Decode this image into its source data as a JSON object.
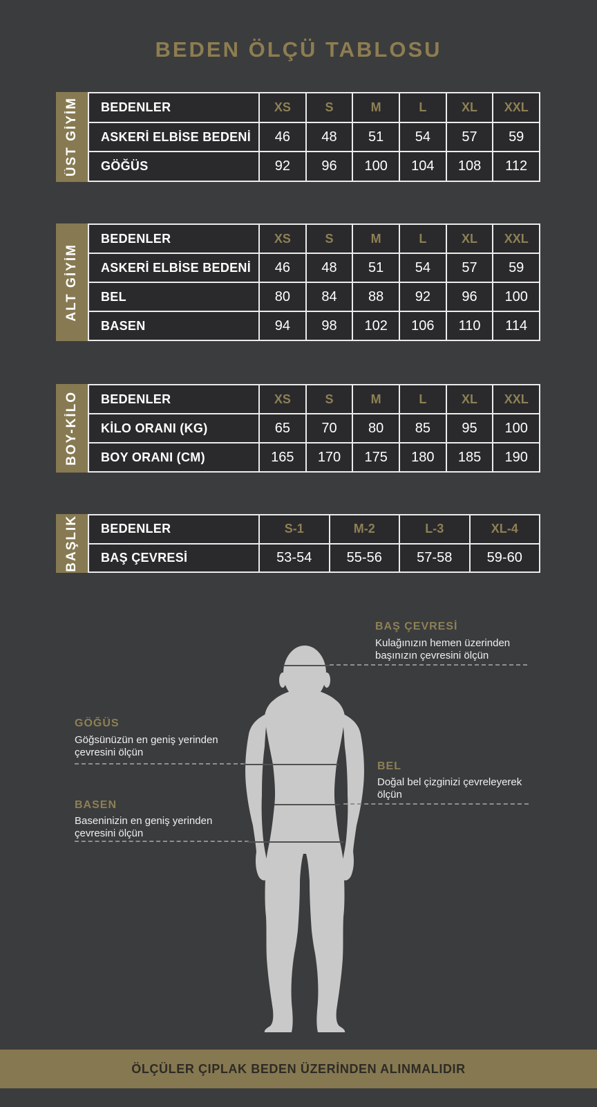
{
  "title": "BEDEN ÖLÇÜ TABLOSU",
  "tables": [
    {
      "group": "ÜST GİYİM",
      "rows": [
        {
          "label": "BEDENLER",
          "values": [
            "XS",
            "S",
            "M",
            "L",
            "XL",
            "XXL"
          ],
          "header": true
        },
        {
          "label": "ASKERİ ELBİSE BEDENİ",
          "values": [
            "46",
            "48",
            "51",
            "54",
            "57",
            "59"
          ]
        },
        {
          "label": "GÖĞÜS",
          "values": [
            "92",
            "96",
            "100",
            "104",
            "108",
            "112"
          ]
        }
      ]
    },
    {
      "group": "ALT GİYİM",
      "rows": [
        {
          "label": "BEDENLER",
          "values": [
            "XS",
            "S",
            "M",
            "L",
            "XL",
            "XXL"
          ],
          "header": true
        },
        {
          "label": "ASKERİ ELBİSE BEDENİ",
          "values": [
            "46",
            "48",
            "51",
            "54",
            "57",
            "59"
          ]
        },
        {
          "label": "BEL",
          "values": [
            "80",
            "84",
            "88",
            "92",
            "96",
            "100"
          ]
        },
        {
          "label": "BASEN",
          "values": [
            "94",
            "98",
            "102",
            "106",
            "110",
            "114"
          ]
        }
      ]
    },
    {
      "group": "BOY-KİLO",
      "rows": [
        {
          "label": "BEDENLER",
          "values": [
            "XS",
            "S",
            "M",
            "L",
            "XL",
            "XXL"
          ],
          "header": true
        },
        {
          "label": "KİLO ORANI (KG)",
          "values": [
            "65",
            "70",
            "80",
            "85",
            "95",
            "100"
          ]
        },
        {
          "label": "BOY ORANI (CM)",
          "values": [
            "165",
            "170",
            "175",
            "180",
            "185",
            "190"
          ]
        }
      ]
    },
    {
      "group": "BAŞLIK",
      "rows": [
        {
          "label": "BEDENLER",
          "values": [
            "S-1",
            "M-2",
            "L-3",
            "XL-4"
          ],
          "header": true
        },
        {
          "label": "BAŞ ÇEVRESİ",
          "values": [
            "53-54",
            "55-56",
            "57-58",
            "59-60"
          ]
        }
      ]
    }
  ],
  "diagram": {
    "annotations": [
      {
        "id": "bas-cevresi",
        "title": "BAŞ ÇEVRESİ",
        "lines": [
          "Kulağınızın hemen üzerinden",
          "başınızın çevresini ölçün"
        ]
      },
      {
        "id": "gogus",
        "title": "GÖĞÜS",
        "lines": [
          "Göğsünüzün en geniş yerinden",
          "çevresini ölçün"
        ]
      },
      {
        "id": "bel",
        "title": "BEL",
        "lines": [
          "Doğal bel çizginizi çevreleyerek",
          "ölçün"
        ]
      },
      {
        "id": "basen",
        "title": "BASEN",
        "lines": [
          "Baseninizin en geniş yerinden",
          "çevresini ölçün"
        ]
      }
    ]
  },
  "footer": {
    "note": "ÖLÇÜLER ÇIPLAK BEDEN ÜZERİNDEN ALINMALIDIR"
  },
  "colors": {
    "accent_gold": "#877a52",
    "gold_text": "#8d8055",
    "title_gold": "#8d7d51",
    "table_bg": "#2a2a2c",
    "page_bg": "#3b3c3e",
    "silhouette": "#c9c9c9",
    "footer_band": "#867850"
  }
}
